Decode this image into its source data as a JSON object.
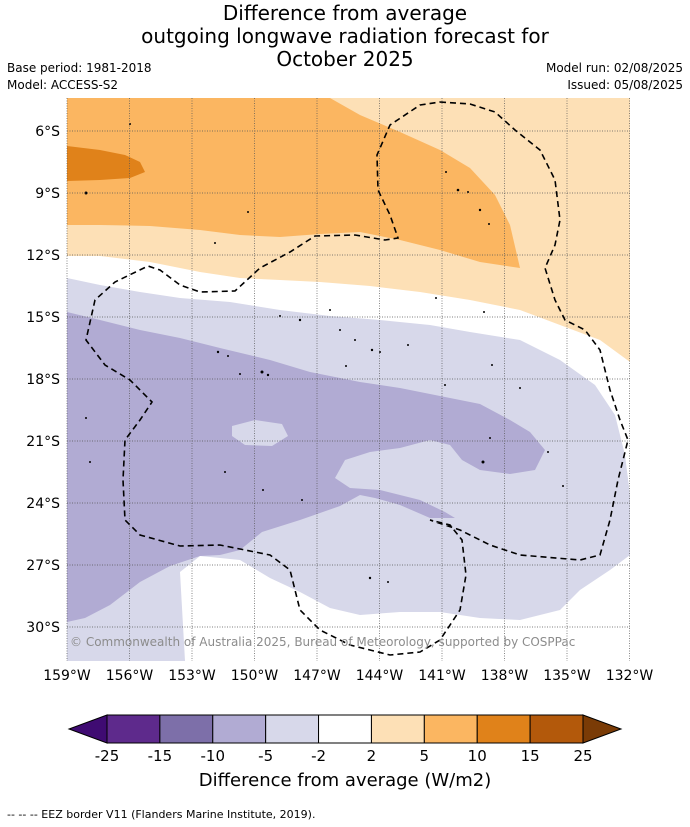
{
  "title": {
    "line1": "Difference from average",
    "line2": "outgoing longwave radiation forecast for",
    "line3": "October 2025"
  },
  "meta": {
    "base_period": "Base period: 1981-2018",
    "model": "Model: ACCESS-S2",
    "model_run": "Model run: 02/08/2025",
    "issued": "Issued: 05/08/2025"
  },
  "map": {
    "lat_labels": [
      "6°S",
      "9°S",
      "12°S",
      "15°S",
      "18°S",
      "21°S",
      "24°S",
      "27°S",
      "30°S"
    ],
    "lon_labels": [
      "159°W",
      "156°W",
      "153°W",
      "150°W",
      "147°W",
      "144°W",
      "141°W",
      "138°W",
      "135°W",
      "132°W"
    ],
    "copyright": "© Commonwealth of Australia 2025, Bureau of Meteorology, supported by COSPPac",
    "colors": {
      "orange_light": "#fde0b6",
      "orange_mid": "#fbb661",
      "orange_dark": "#e0821a",
      "purple_light": "#d7d8ea",
      "purple_mid": "#b1abd3"
    }
  },
  "colorbar": {
    "ticks": [
      "-25",
      "-15",
      "-10",
      "-5",
      "-2",
      "2",
      "5",
      "10",
      "15",
      "25"
    ],
    "colors": [
      "#3f0b72",
      "#5e2a8c",
      "#7d6fa9",
      "#b1abd3",
      "#d7d8ea",
      "#ffffff",
      "#fde0b6",
      "#fbb661",
      "#e0821a",
      "#b3590b",
      "#7a3b06"
    ],
    "label": "Difference from average (W/m2)"
  },
  "footnote": "-- -- -- EEZ border V11 (Flanders Marine Institute, 2019)."
}
